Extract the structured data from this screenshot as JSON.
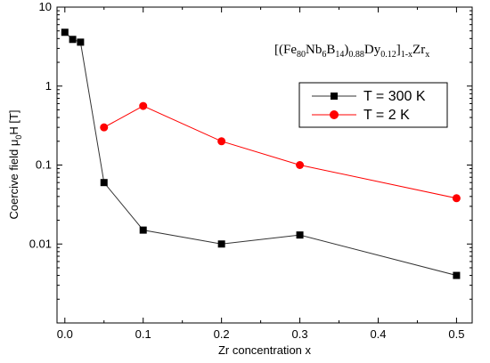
{
  "chart_data": {
    "type": "line",
    "xlabel": "Zr concentration x",
    "ylabel_prefix": "Coercive field  μ",
    "ylabel_sub": "0",
    "ylabel_suffix": "H [T]",
    "xlim": [
      -0.01,
      0.52
    ],
    "ylim": [
      0.001,
      10
    ],
    "yscale": "log",
    "x_ticks": [
      "0.0",
      "0.1",
      "0.2",
      "0.3",
      "0.4",
      "0.5"
    ],
    "y_ticks": [
      "0.01",
      "0.1",
      "1",
      "10"
    ],
    "formula": [
      {
        "t": "[(Fe",
        "sub": false
      },
      {
        "t": "80",
        "sub": true
      },
      {
        "t": "Nb",
        "sub": false
      },
      {
        "t": "6",
        "sub": true
      },
      {
        "t": "B",
        "sub": false
      },
      {
        "t": "14",
        "sub": true
      },
      {
        "t": ")",
        "sub": false
      },
      {
        "t": "0.88",
        "sub": true
      },
      {
        "t": "Dy",
        "sub": false
      },
      {
        "t": "0.12",
        "sub": true
      },
      {
        "t": "]",
        "sub": false
      },
      {
        "t": "1-x",
        "sub": true
      },
      {
        "t": "Zr",
        "sub": false
      },
      {
        "t": "x",
        "sub": true
      }
    ],
    "legend_position": "upper-right",
    "series": [
      {
        "name": "T  =  300  K",
        "color": "#000000",
        "line_color": "#333333",
        "marker": "square",
        "x": [
          0.0,
          0.01,
          0.02,
          0.05,
          0.1,
          0.2,
          0.3,
          0.5
        ],
        "y": [
          4.8,
          3.9,
          3.6,
          0.06,
          0.015,
          0.01,
          0.013,
          0.004
        ]
      },
      {
        "name": "T  =  2  K",
        "color": "#ff0000",
        "line_color": "#ff0000",
        "marker": "circle",
        "x": [
          0.05,
          0.1,
          0.2,
          0.3,
          0.5
        ],
        "y": [
          0.3,
          0.56,
          0.2,
          0.1,
          0.038
        ]
      }
    ]
  }
}
